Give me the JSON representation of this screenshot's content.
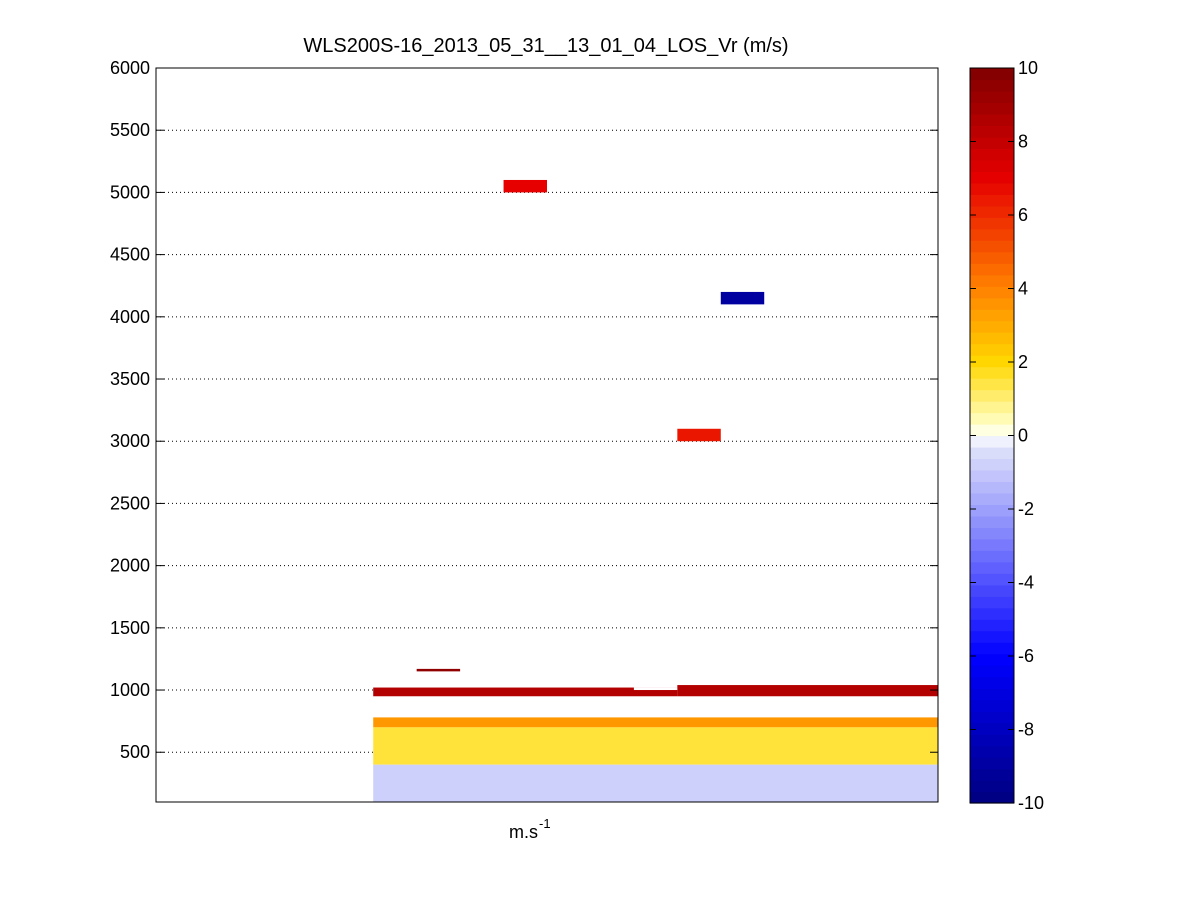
{
  "chart_data": {
    "type": "heatmap",
    "title": "WLS200S-16_2013_05_31__13_01_04_LOS_Vr (m/s)",
    "xlabel": "m.s",
    "xlabel_superscript": "-1",
    "ylabel": "",
    "ylim": [
      100,
      6000
    ],
    "yticks": [
      500,
      1000,
      1500,
      2000,
      2500,
      3000,
      3500,
      4000,
      4500,
      5000,
      5500,
      6000
    ],
    "ytick_labels": [
      "500",
      "1000",
      "1500",
      "2000",
      "2500",
      "3000",
      "3500",
      "4000",
      "4500",
      "5000",
      "5500",
      "6000"
    ],
    "x_axis_ticks": "none",
    "grid": "horizontal dotted",
    "colorbar": {
      "range": [
        -10,
        10
      ],
      "ticks": [
        -10,
        -8,
        -6,
        -4,
        -2,
        0,
        2,
        4,
        6,
        8,
        10
      ],
      "tick_labels": [
        "-10",
        "-8",
        "-6",
        "-4",
        "-2",
        "0",
        "2",
        "4",
        "6",
        "8",
        "10"
      ],
      "levels": 64,
      "colormap": "dark blue - blue - white - yellow - orange - red - dark red"
    },
    "columns": 18,
    "cells": [
      {
        "col": 8,
        "alt": [
          5000,
          5100
        ],
        "value": 7
      },
      {
        "col": 13,
        "alt": [
          4100,
          4200
        ],
        "value": -9
      },
      {
        "col": 12,
        "alt": [
          3000,
          3100
        ],
        "value": 6.5
      },
      {
        "col": 6,
        "alt": [
          1150,
          1170
        ],
        "value": 9.5
      },
      {
        "col": [
          5,
          11
        ],
        "alt": [
          950,
          1020
        ],
        "value": 8.5
      },
      {
        "col": [
          12,
          17
        ],
        "alt": [
          950,
          1040
        ],
        "value": 8.5
      },
      {
        "col": [
          11,
          11
        ],
        "alt": [
          1000,
          1020
        ],
        "value": 0
      },
      {
        "col": [
          5,
          17
        ],
        "alt": [
          700,
          780
        ],
        "value": 3.5
      },
      {
        "col": [
          5,
          17
        ],
        "alt": [
          400,
          700
        ],
        "value": 1.5
      },
      {
        "col": [
          5,
          17
        ],
        "alt": [
          100,
          400
        ],
        "value": -0.8
      }
    ]
  }
}
